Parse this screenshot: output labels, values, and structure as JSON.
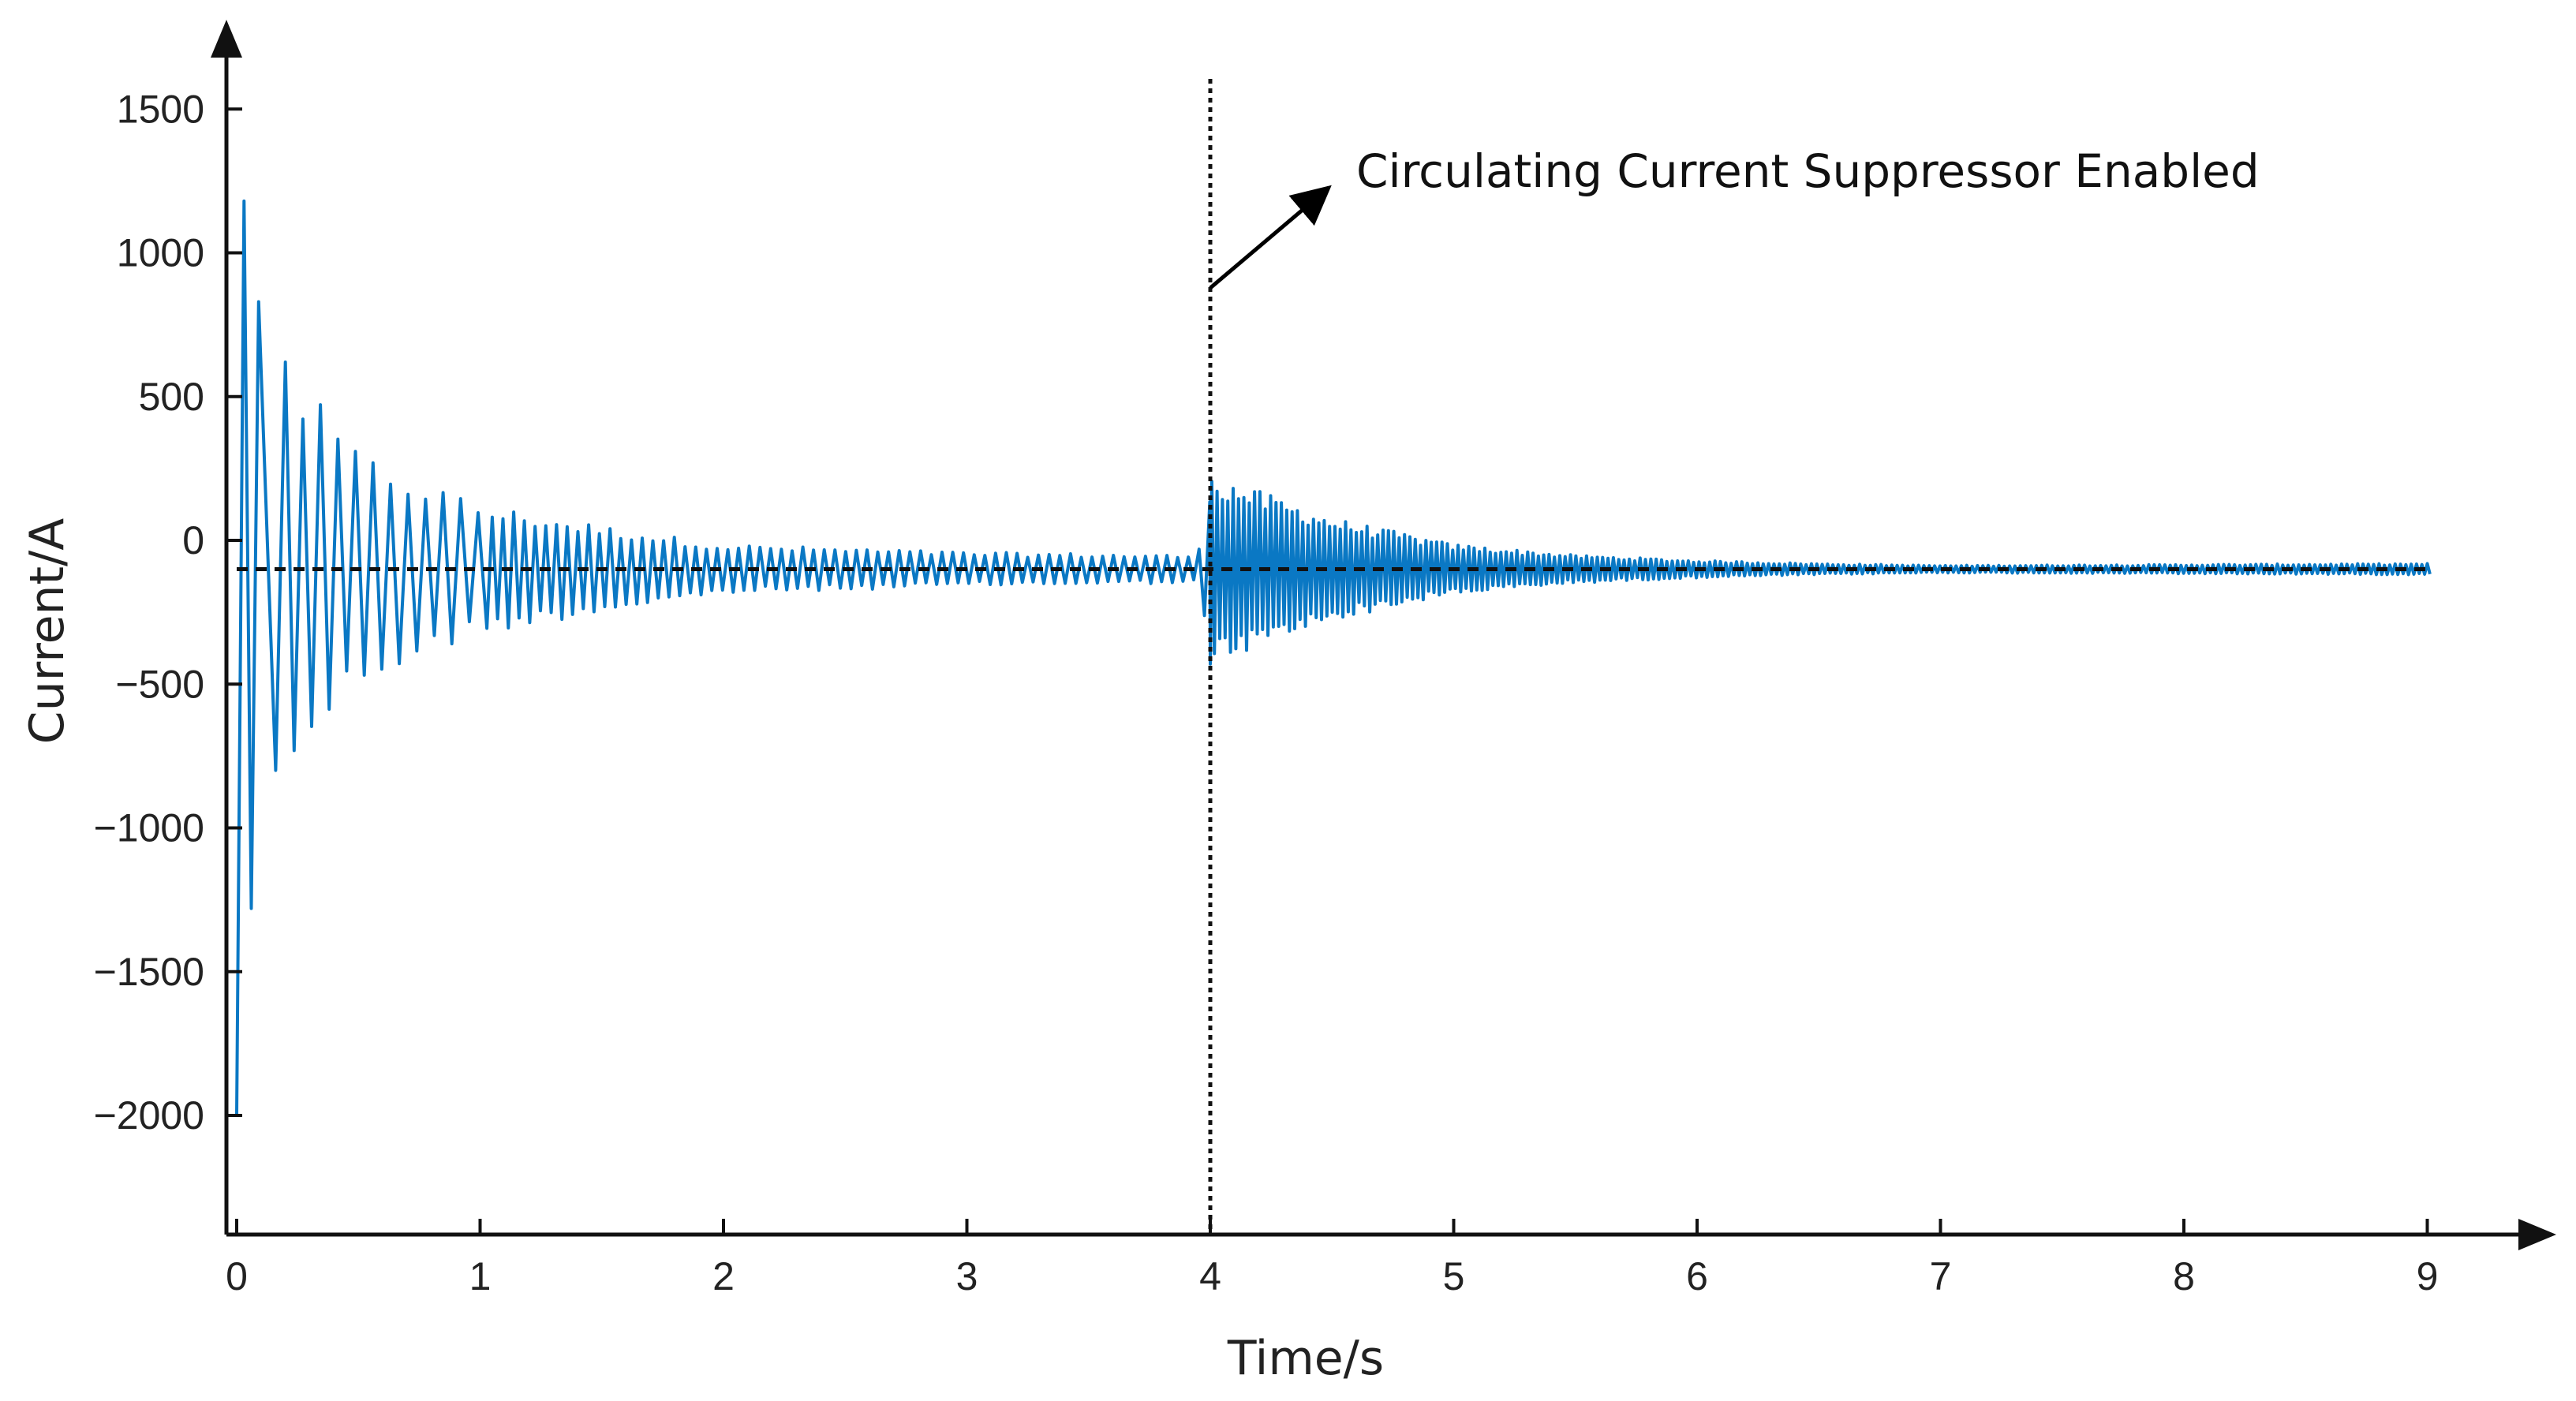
{
  "chart_data": {
    "type": "line",
    "xlabel": "Time/s",
    "ylabel": "Current/A",
    "xlim": [
      0,
      9.5
    ],
    "ylim": [
      -2400,
      1750
    ],
    "x_ticks": [
      0,
      1,
      2,
      3,
      4,
      5,
      6,
      7,
      8,
      9
    ],
    "y_ticks": [
      1500,
      1000,
      500,
      0,
      -500,
      -1000,
      -1500,
      -2000
    ],
    "y_tick_labels": [
      "1500",
      "1000",
      "500",
      "0",
      "−500",
      "−1000",
      "−1500",
      "−2000"
    ],
    "annotation": {
      "text": "Circulating Current Suppressor Enabled",
      "event_time": 4.0
    },
    "reference_level": -100,
    "series": [
      {
        "color": "#0a78c4",
        "x_range": [
          0,
          9.0
        ],
        "offset": -100,
        "first_peaks": [
          {
            "x": 0.0,
            "y": -2000
          },
          {
            "x": 0.03,
            "y": 1180
          },
          {
            "x": 0.06,
            "y": -1280
          },
          {
            "x": 0.09,
            "y": 830
          },
          {
            "x": 0.16,
            "y": -800
          },
          {
            "x": 0.2,
            "y": 620
          }
        ],
        "envelope": [
          {
            "x": 0.0,
            "amp": 1300
          },
          {
            "x": 0.1,
            "amp": 900
          },
          {
            "x": 0.25,
            "amp": 620
          },
          {
            "x": 0.5,
            "amp": 380
          },
          {
            "x": 1.0,
            "amp": 210
          },
          {
            "x": 1.5,
            "amp": 140
          },
          {
            "x": 2.0,
            "amp": 80
          },
          {
            "x": 3.0,
            "amp": 55
          },
          {
            "x": 3.95,
            "amp": 45
          },
          {
            "x": 4.0,
            "amp": 310
          },
          {
            "x": 4.5,
            "amp": 165
          },
          {
            "x": 5.0,
            "amp": 80
          },
          {
            "x": 5.5,
            "amp": 45
          },
          {
            "x": 6.0,
            "amp": 28
          },
          {
            "x": 6.5,
            "amp": 18
          },
          {
            "x": 7.0,
            "amp": 12
          },
          {
            "x": 8.0,
            "amp": 15
          },
          {
            "x": 9.0,
            "amp": 18
          }
        ]
      }
    ]
  }
}
